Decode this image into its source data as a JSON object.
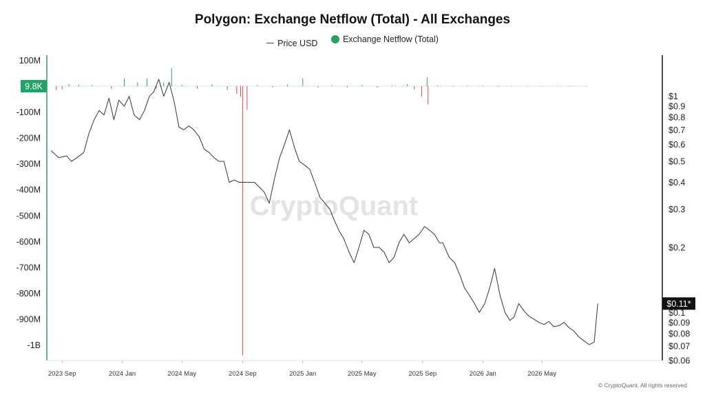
{
  "chart_data": {
    "type": "line+bar",
    "title": "Polygon: Exchange Netflow (Total) - All Exchanges",
    "watermark": "CryptoQuant",
    "copyright": "© CryptoQuant. All rights reserved",
    "legend": [
      {
        "name": "Price USD",
        "marker": "line",
        "color": "#444444"
      },
      {
        "name": "Exchange Netflow (Total)",
        "marker": "dot",
        "color": "#21a366"
      }
    ],
    "x_axis": {
      "type": "date",
      "range": [
        "2023-08-01",
        "2026-12-31"
      ],
      "tick_labels": [
        {
          "label": "2023 Sep",
          "date": "2023-09-01"
        },
        {
          "label": "2024 Jan",
          "date": "2024-01-01"
        },
        {
          "label": "2024 May",
          "date": "2024-05-01"
        },
        {
          "label": "2024 Sep",
          "date": "2024-09-01"
        },
        {
          "label": "2025 Jan",
          "date": "2025-01-01"
        },
        {
          "label": "2025 May",
          "date": "2025-05-01"
        },
        {
          "label": "2025 Sep",
          "date": "2025-09-01"
        },
        {
          "label": "2026 Jan",
          "date": "2026-01-01"
        },
        {
          "label": "2026 May",
          "date": "2026-05-01"
        }
      ]
    },
    "y_left": {
      "label": "Exchange Netflow (Total)",
      "range": [
        -1060000000,
        120000000
      ],
      "ticks": [
        {
          "label": "100M",
          "value": 100000000
        },
        {
          "label": "-100M",
          "value": -100000000
        },
        {
          "label": "-200M",
          "value": -200000000
        },
        {
          "label": "-300M",
          "value": -300000000
        },
        {
          "label": "-400M",
          "value": -400000000
        },
        {
          "label": "-500M",
          "value": -500000000
        },
        {
          "label": "-600M",
          "value": -600000000
        },
        {
          "label": "-700M",
          "value": -700000000
        },
        {
          "label": "-800M",
          "value": -800000000
        },
        {
          "label": "-900M",
          "value": -900000000
        },
        {
          "label": "-1B",
          "value": -1000000000
        }
      ],
      "current_marker": {
        "label": "9.8K",
        "value": 9800,
        "color": "#21a366"
      }
    },
    "y_right": {
      "label": "Price USD",
      "scale": "log",
      "range": [
        0.06,
        1.55
      ],
      "ticks": [
        {
          "label": "$1",
          "value": 1
        },
        {
          "label": "$0.9",
          "value": 0.9
        },
        {
          "label": "$0.8",
          "value": 0.8
        },
        {
          "label": "$0.7",
          "value": 0.7
        },
        {
          "label": "$0.6",
          "value": 0.6
        },
        {
          "label": "$0.5",
          "value": 0.5
        },
        {
          "label": "$0.4",
          "value": 0.4
        },
        {
          "label": "$0.3",
          "value": 0.3
        },
        {
          "label": "$0.2",
          "value": 0.2
        },
        {
          "label": "$0.1",
          "value": 0.1
        },
        {
          "label": "$0.09",
          "value": 0.09
        },
        {
          "label": "$0.08",
          "value": 0.08
        },
        {
          "label": "$0.07",
          "value": 0.07
        },
        {
          "label": "$0.06",
          "value": 0.06
        }
      ],
      "current_marker": {
        "label": "$0.11*",
        "value": 0.11,
        "color": "#111111"
      }
    },
    "series": [
      {
        "name": "Price USD",
        "type": "line",
        "color": "#333333",
        "x": [
          "2023-08-10",
          "2023-08-25",
          "2023-09-10",
          "2023-09-20",
          "2023-10-01",
          "2023-10-15",
          "2023-10-25",
          "2023-11-05",
          "2023-11-15",
          "2023-11-25",
          "2023-12-05",
          "2023-12-15",
          "2023-12-25",
          "2024-01-05",
          "2024-01-15",
          "2024-01-25",
          "2024-02-05",
          "2024-02-15",
          "2024-02-25",
          "2024-03-05",
          "2024-03-15",
          "2024-03-25",
          "2024-04-05",
          "2024-04-15",
          "2024-04-25",
          "2024-05-05",
          "2024-05-15",
          "2024-05-25",
          "2024-06-05",
          "2024-06-15",
          "2024-06-25",
          "2024-07-05",
          "2024-07-15",
          "2024-07-25",
          "2024-08-05",
          "2024-08-15",
          "2024-08-25",
          "2024-09-05",
          "2024-09-15",
          "2024-09-25",
          "2024-10-05",
          "2024-10-15",
          "2024-10-25",
          "2024-11-05",
          "2024-11-15",
          "2024-11-25",
          "2024-12-05",
          "2024-12-15",
          "2024-12-25",
          "2025-01-05",
          "2025-01-15",
          "2025-01-25",
          "2025-02-05",
          "2025-02-15",
          "2025-02-25",
          "2025-03-05",
          "2025-03-15",
          "2025-03-25",
          "2025-04-05",
          "2025-04-15",
          "2025-04-25",
          "2025-05-05",
          "2025-05-15",
          "2025-05-25",
          "2025-06-05",
          "2025-06-15",
          "2025-06-25",
          "2025-07-05",
          "2025-07-15",
          "2025-07-25",
          "2025-08-05",
          "2025-08-15",
          "2025-08-25",
          "2025-09-05",
          "2025-09-15",
          "2025-09-25",
          "2025-10-05",
          "2025-10-12",
          "2025-10-25",
          "2025-11-05",
          "2025-11-15",
          "2025-11-25",
          "2025-12-05",
          "2025-12-15",
          "2025-12-25",
          "2026-01-05",
          "2026-01-15",
          "2026-01-25",
          "2026-02-05",
          "2026-02-15",
          "2026-02-25",
          "2026-03-05",
          "2026-03-15",
          "2026-03-25",
          "2026-04-05",
          "2026-04-15",
          "2026-04-25",
          "2026-05-05",
          "2026-05-15",
          "2026-05-25",
          "2026-06-05",
          "2026-06-15",
          "2026-06-25",
          "2026-07-05",
          "2026-07-15",
          "2026-07-25",
          "2026-08-05",
          "2026-08-15",
          "2026-08-22"
        ],
        "values": [
          0.56,
          0.52,
          0.53,
          0.5,
          0.52,
          0.55,
          0.67,
          0.78,
          0.86,
          0.82,
          0.98,
          0.78,
          0.96,
          0.9,
          1.0,
          0.82,
          0.78,
          0.86,
          1.0,
          1.05,
          1.2,
          1.0,
          1.16,
          0.95,
          0.72,
          0.7,
          0.73,
          0.7,
          0.65,
          0.57,
          0.55,
          0.52,
          0.5,
          0.5,
          0.4,
          0.41,
          0.4,
          0.4,
          0.4,
          0.4,
          0.38,
          0.36,
          0.32,
          0.42,
          0.52,
          0.6,
          0.7,
          0.58,
          0.5,
          0.48,
          0.46,
          0.4,
          0.34,
          0.32,
          0.3,
          0.27,
          0.24,
          0.22,
          0.19,
          0.17,
          0.2,
          0.24,
          0.23,
          0.2,
          0.2,
          0.19,
          0.17,
          0.18,
          0.21,
          0.23,
          0.21,
          0.22,
          0.23,
          0.25,
          0.24,
          0.23,
          0.21,
          0.21,
          0.18,
          0.17,
          0.15,
          0.13,
          0.12,
          0.11,
          0.1,
          0.11,
          0.13,
          0.16,
          0.12,
          0.1,
          0.092,
          0.095,
          0.11,
          0.102,
          0.096,
          0.093,
          0.09,
          0.088,
          0.091,
          0.086,
          0.087,
          0.09,
          0.085,
          0.082,
          0.077,
          0.074,
          0.071,
          0.073,
          0.11
        ]
      },
      {
        "name": "Exchange Netflow (Total)",
        "type": "bar",
        "positive_color": "#21a366",
        "negative_color": "#e0413c",
        "x": [
          "2023-08-20",
          "2023-09-01",
          "2023-09-15",
          "2023-10-05",
          "2023-11-01",
          "2023-12-10",
          "2024-01-05",
          "2024-02-01",
          "2024-02-20",
          "2024-03-10",
          "2024-03-25",
          "2024-04-10",
          "2024-05-01",
          "2024-06-01",
          "2024-07-01",
          "2024-08-01",
          "2024-08-20",
          "2024-08-28",
          "2024-09-01",
          "2024-09-10",
          "2024-10-01",
          "2024-11-01",
          "2024-12-01",
          "2025-01-01",
          "2025-02-01",
          "2025-03-01",
          "2025-04-01",
          "2025-05-01",
          "2025-06-01",
          "2025-07-01",
          "2025-08-01",
          "2025-08-15",
          "2025-08-30",
          "2025-09-10",
          "2025-09-12",
          "2025-10-01",
          "2025-11-01",
          "2025-12-01",
          "2026-01-01",
          "2026-02-01",
          "2026-03-01",
          "2026-04-01",
          "2026-05-01",
          "2026-06-01",
          "2026-07-01",
          "2026-08-01"
        ],
        "values": [
          -15000000,
          -12000000,
          8000000,
          6000000,
          4000000,
          -10000000,
          30000000,
          15000000,
          30000000,
          -10000000,
          15000000,
          70000000,
          5000000,
          -10000000,
          8000000,
          -15000000,
          -30000000,
          -40000000,
          -1040000000,
          -90000000,
          4000000,
          -5000000,
          6000000,
          30000000,
          -5000000,
          4000000,
          -5000000,
          4000000,
          -5000000,
          3000000,
          8000000,
          -12000000,
          -40000000,
          35000000,
          -70000000,
          3000000,
          2000000,
          2000000,
          2000000,
          1500000,
          1500000,
          1000000,
          1000000,
          1000000,
          800000,
          500000
        ]
      }
    ]
  }
}
